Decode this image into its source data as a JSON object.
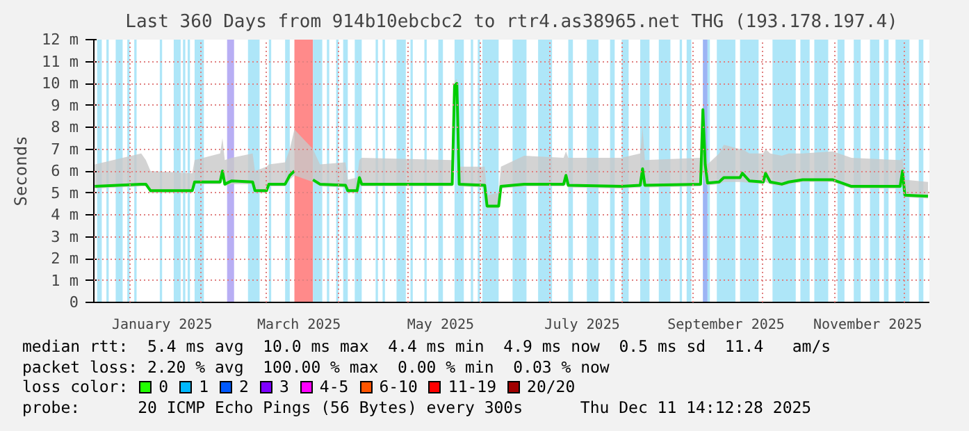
{
  "chart_data": {
    "type": "line",
    "title": "Last 360 Days from 914b10ebcbc2 to rtr4.as38965.net THG (193.178.197.4)",
    "ylabel": "Seconds",
    "xlim": [
      "2024-12-16T14:00",
      "2025-12-11T14:00"
    ],
    "xticks": [
      {
        "value": "2025-01-01",
        "label": null
      },
      {
        "value": "2025-02-01",
        "label": null
      },
      {
        "value": "2025-03-01",
        "label": null
      },
      {
        "value": "2025-04-01",
        "label": null
      },
      {
        "value": "2025-05-01",
        "label": null
      },
      {
        "value": "2025-06-01",
        "label": null
      },
      {
        "value": "2025-07-01",
        "label": null
      },
      {
        "value": "2025-08-01",
        "label": null
      },
      {
        "value": "2025-09-01",
        "label": null
      },
      {
        "value": "2025-10-01",
        "label": null
      },
      {
        "value": "2025-11-01",
        "label": null
      },
      {
        "value": "2025-12-01",
        "label": null
      },
      {
        "value": "2025-01-15",
        "label": "January 2025"
      },
      {
        "value": "2025-03-15",
        "label": "March 2025"
      },
      {
        "value": "2025-05-15",
        "label": "May 2025"
      },
      {
        "value": "2025-07-15",
        "label": "July 2025"
      },
      {
        "value": "2025-09-15",
        "label": "September 2025"
      },
      {
        "value": "2025-11-15",
        "label": "November 2025"
      }
    ],
    "ylim": [
      0,
      12
    ],
    "yticks": [
      0,
      {
        "value": 1,
        "label": "1 m"
      },
      {
        "value": 2,
        "label": "2 m"
      },
      {
        "value": 3,
        "label": "3 m"
      },
      {
        "value": 4,
        "label": "4 m"
      },
      {
        "value": 5,
        "label": "5 m"
      },
      {
        "value": 6,
        "label": "6 m"
      },
      {
        "value": 7,
        "label": "7 m"
      },
      {
        "value": 8,
        "label": "8 m"
      },
      {
        "value": 9,
        "label": "9 m"
      },
      {
        "value": 10,
        "label": "10 m"
      },
      {
        "value": 11,
        "label": "11 m"
      },
      {
        "value": 12,
        "label": "12 m"
      }
    ],
    "grid": true,
    "legend": "bottom",
    "legend_title": "loss color:",
    "x": [
      "2024-12-17",
      "2025-01-06",
      "2025-01-08",
      "2025-01-10",
      "2025-01-28",
      "2025-01-29",
      "2025-02-09",
      "2025-02-10",
      "2025-02-11",
      "2025-02-14",
      "2025-02-23",
      "2025-02-24",
      "2025-03-01",
      "2025-03-02",
      "2025-03-09",
      "2025-03-11",
      "2025-03-13",
      "2025-03-17",
      "2025-03-21",
      "2025-03-24",
      "2025-04-04",
      "2025-04-05",
      "2025-04-09",
      "2025-04-10",
      "2025-04-11",
      "2025-05-20",
      "2025-05-21",
      "2025-05-22",
      "2025-05-23",
      "2025-06-03",
      "2025-06-04",
      "2025-06-09",
      "2025-06-10",
      "2025-06-20",
      "2025-07-07",
      "2025-07-08",
      "2025-07-09",
      "2025-08-01",
      "2025-08-09",
      "2025-08-10",
      "2025-08-11",
      "2025-09-04",
      "2025-09-05",
      "2025-09-06",
      "2025-09-07",
      "2025-09-12",
      "2025-09-14",
      "2025-09-21",
      "2025-09-22",
      "2025-09-25",
      "2025-10-01",
      "2025-10-02",
      "2025-10-04",
      "2025-10-09",
      "2025-10-12",
      "2025-10-18",
      "2025-10-31",
      "2025-11-08",
      "2025-11-29",
      "2025-11-30",
      "2025-12-01",
      "2025-12-11"
    ],
    "series": [
      {
        "color": "#00cc00",
        "values": [
          5.3,
          5.4,
          5.4,
          5.1,
          5.1,
          5.5,
          5.5,
          6.0,
          5.4,
          5.55,
          5.5,
          5.1,
          5.1,
          5.4,
          5.4,
          5.8,
          6.0,
          null,
          5.6,
          5.4,
          5.35,
          5.1,
          5.1,
          5.7,
          5.4,
          5.4,
          9.9,
          10.0,
          5.4,
          5.35,
          4.4,
          4.4,
          5.3,
          5.4,
          5.4,
          5.8,
          5.35,
          5.3,
          5.35,
          6.1,
          5.35,
          5.4,
          8.8,
          6.3,
          5.45,
          5.5,
          5.7,
          5.7,
          5.9,
          5.55,
          5.5,
          5.9,
          5.5,
          5.4,
          5.5,
          5.6,
          5.6,
          5.3,
          5.3,
          6.0,
          4.9,
          4.85
        ],
        "lower": [
          5.2,
          5.3,
          5.3,
          5.0,
          5.0,
          5.4,
          5.4,
          5.9,
          5.3,
          5.4,
          5.4,
          5.0,
          5.0,
          5.3,
          5.3,
          5.6,
          5.8,
          null,
          5.5,
          5.3,
          5.25,
          5.0,
          5.0,
          5.3,
          5.3,
          5.3,
          9.7,
          9.8,
          5.3,
          5.25,
          4.3,
          4.3,
          5.2,
          5.3,
          5.3,
          5.4,
          5.25,
          5.2,
          5.25,
          5.4,
          5.25,
          5.3,
          6.0,
          5.4,
          5.35,
          5.4,
          5.5,
          5.5,
          5.5,
          5.45,
          5.4,
          5.5,
          5.4,
          5.3,
          5.4,
          5.5,
          5.5,
          5.2,
          5.2,
          5.4,
          4.8,
          4.75
        ],
        "upper": [
          6.3,
          6.8,
          6.5,
          6.0,
          5.9,
          6.5,
          6.8,
          7.5,
          6.5,
          6.6,
          6.8,
          6.0,
          6.2,
          6.3,
          6.4,
          7.0,
          7.9,
          null,
          7.0,
          6.3,
          6.4,
          5.6,
          5.7,
          6.5,
          6.6,
          6.5,
          10.1,
          10.2,
          6.2,
          6.2,
          4.9,
          5.0,
          6.2,
          6.7,
          6.6,
          6.9,
          6.6,
          6.6,
          6.8,
          8.0,
          6.5,
          6.6,
          9.1,
          7.3,
          6.3,
          6.8,
          7.2,
          7.0,
          7.0,
          6.8,
          6.8,
          7.0,
          6.8,
          6.7,
          6.8,
          6.8,
          6.9,
          6.6,
          6.5,
          6.6,
          5.6,
          5.5
        ]
      },
      {
        "name": "0",
        "color": "#22ff00",
        "values": [
          null,
          null,
          null,
          null,
          null,
          null,
          null,
          null,
          null,
          null,
          null,
          null,
          null,
          null,
          null,
          null,
          null,
          null,
          null,
          null,
          null,
          null,
          null,
          null,
          null,
          null,
          null,
          null,
          null,
          null,
          null,
          null,
          null,
          null,
          null,
          null,
          null,
          null,
          null,
          null,
          null,
          null,
          null,
          null,
          null,
          null,
          null,
          null,
          null,
          null,
          null,
          null,
          null,
          null,
          null,
          null,
          null,
          null,
          null,
          null,
          null,
          null
        ]
      },
      {
        "name": "1",
        "color": "#00b8ff",
        "values": [
          null,
          null,
          null,
          null,
          null,
          null,
          null,
          null,
          null,
          null,
          null,
          null,
          null,
          null,
          null,
          null,
          null,
          null,
          null,
          null,
          null,
          null,
          null,
          null,
          null,
          null,
          null,
          null,
          null,
          null,
          null,
          null,
          null,
          null,
          null,
          null,
          null,
          null,
          null,
          null,
          null,
          null,
          null,
          null,
          null,
          null,
          null,
          null,
          null,
          null,
          null,
          null,
          null,
          null,
          null,
          null,
          null,
          null,
          null,
          null,
          null,
          null
        ]
      },
      {
        "name": "2",
        "color": "#0059ff",
        "values": [
          null,
          null,
          null,
          null,
          null,
          null,
          null,
          null,
          null,
          null,
          null,
          null,
          null,
          null,
          null,
          null,
          null,
          null,
          null,
          null,
          null,
          null,
          null,
          null,
          null,
          null,
          null,
          null,
          null,
          null,
          null,
          null,
          null,
          null,
          null,
          null,
          null,
          null,
          null,
          null,
          null,
          null,
          null,
          null,
          null,
          null,
          null,
          null,
          null,
          null,
          null,
          null,
          null,
          null,
          null,
          null,
          null,
          null,
          null,
          null,
          null,
          null
        ]
      },
      {
        "name": "3",
        "color": "#7e00ff",
        "values": [
          null,
          null,
          null,
          null,
          null,
          null,
          null,
          null,
          null,
          null,
          null,
          null,
          null,
          null,
          null,
          null,
          null,
          null,
          null,
          null,
          null,
          null,
          null,
          null,
          null,
          null,
          null,
          null,
          null,
          null,
          null,
          null,
          null,
          null,
          null,
          null,
          null,
          null,
          null,
          null,
          null,
          null,
          null,
          null,
          null,
          null,
          null,
          null,
          null,
          null,
          null,
          null,
          null,
          null,
          null,
          null,
          null,
          null,
          null,
          null,
          null,
          null
        ]
      },
      {
        "name": "4-5",
        "color": "#ff00ff",
        "values": [
          null,
          null,
          null,
          null,
          null,
          null,
          null,
          null,
          null,
          null,
          null,
          null,
          null,
          null,
          null,
          null,
          null,
          null,
          null,
          null,
          null,
          null,
          null,
          null,
          null,
          null,
          null,
          null,
          null,
          null,
          null,
          null,
          null,
          null,
          null,
          null,
          null,
          null,
          null,
          null,
          null,
          null,
          null,
          null,
          null,
          null,
          null,
          null,
          null,
          null,
          null,
          null,
          null,
          null,
          null,
          null,
          null,
          null,
          null,
          null,
          null,
          null
        ]
      },
      {
        "name": "6-10",
        "color": "#ff5500",
        "values": [
          null,
          null,
          null,
          null,
          null,
          null,
          null,
          null,
          null,
          null,
          null,
          null,
          null,
          null,
          null,
          null,
          null,
          null,
          null,
          null,
          null,
          null,
          null,
          null,
          null,
          null,
          null,
          null,
          null,
          null,
          null,
          null,
          null,
          null,
          null,
          null,
          null,
          null,
          null,
          null,
          null,
          null,
          null,
          null,
          null,
          null,
          null,
          null,
          null,
          null,
          null,
          null,
          null,
          null,
          null,
          null,
          null,
          null,
          null,
          null,
          null,
          null
        ]
      },
      {
        "name": "11-19",
        "color": "#ff0000",
        "values": [
          null,
          null,
          null,
          null,
          null,
          null,
          null,
          null,
          null,
          null,
          null,
          null,
          null,
          null,
          null,
          null,
          null,
          null,
          null,
          null,
          null,
          null,
          null,
          null,
          null,
          null,
          null,
          null,
          null,
          null,
          null,
          null,
          null,
          null,
          null,
          null,
          null,
          null,
          null,
          null,
          null,
          null,
          null,
          null,
          null,
          null,
          null,
          null,
          null,
          null,
          null,
          null,
          null,
          null,
          null,
          null,
          null,
          null,
          null,
          null,
          null,
          null
        ]
      },
      {
        "name": "20/20",
        "color": "#a10000",
        "values": [
          null,
          null,
          null,
          null,
          null,
          null,
          null,
          null,
          null,
          null,
          null,
          null,
          null,
          null,
          null,
          null,
          null,
          null,
          null,
          null,
          null,
          null,
          null,
          null,
          null,
          null,
          null,
          null,
          null,
          null,
          null,
          null,
          null,
          null,
          null,
          null,
          null,
          null,
          null,
          null,
          null,
          null,
          null,
          null,
          null,
          null,
          null,
          null,
          null,
          null,
          null,
          null,
          null,
          null,
          null,
          null,
          null,
          null,
          null,
          null,
          null,
          null
        ]
      }
    ],
    "bands": [
      {
        "axis": "x",
        "from": "2024-12-18",
        "to": "2024-12-20",
        "color": "#aee6f8"
      },
      {
        "axis": "x",
        "from": "2024-12-22",
        "to": "2024-12-23",
        "color": "#aee6f8"
      },
      {
        "axis": "x",
        "from": "2024-12-26",
        "to": "2024-12-29",
        "color": "#aee6f8"
      },
      {
        "axis": "x",
        "from": "2024-12-31",
        "to": "2025-01-01",
        "color": "#aee6f8"
      },
      {
        "axis": "x",
        "from": "2025-01-03",
        "to": "2025-01-04",
        "color": "#aee6f8"
      },
      {
        "axis": "x",
        "from": "2025-01-14",
        "to": "2025-01-15",
        "color": "#aee6f8"
      },
      {
        "axis": "x",
        "from": "2025-01-20",
        "to": "2025-01-23",
        "color": "#aee6f8"
      },
      {
        "axis": "x",
        "from": "2025-01-24",
        "to": "2025-01-25",
        "color": "#aee6f8"
      },
      {
        "axis": "x",
        "from": "2025-01-26",
        "to": "2025-01-27",
        "color": "#aee6f8"
      },
      {
        "axis": "x",
        "from": "2025-01-29",
        "to": "2025-02-02",
        "color": "#aee6f8"
      },
      {
        "axis": "x",
        "from": "2025-02-12",
        "to": "2025-02-15",
        "color": "#b8aef4"
      },
      {
        "axis": "x",
        "from": "2025-02-21",
        "to": "2025-02-26",
        "color": "#aee6f8"
      },
      {
        "axis": "x",
        "from": "2025-03-02",
        "to": "2025-03-03",
        "color": "#aee6f8"
      },
      {
        "axis": "x",
        "from": "2025-03-09",
        "to": "2025-03-11",
        "color": "#aee6f8"
      },
      {
        "axis": "x",
        "from": "2025-03-13",
        "to": "2025-03-21",
        "color": "#ff8a8a"
      },
      {
        "axis": "x",
        "from": "2025-03-21",
        "to": "2025-03-25",
        "color": "#aee6f8"
      },
      {
        "axis": "x",
        "from": "2025-03-27",
        "to": "2025-03-28",
        "color": "#aee6f8"
      },
      {
        "axis": "x",
        "from": "2025-03-31",
        "to": "2025-04-01",
        "color": "#aee6f8"
      },
      {
        "axis": "x",
        "from": "2025-04-03",
        "to": "2025-04-05",
        "color": "#aee6f8"
      },
      {
        "axis": "x",
        "from": "2025-04-08",
        "to": "2025-04-11",
        "color": "#aee6f8"
      },
      {
        "axis": "x",
        "from": "2025-04-17",
        "to": "2025-04-18",
        "color": "#aee6f8"
      },
      {
        "axis": "x",
        "from": "2025-04-20",
        "to": "2025-04-21",
        "color": "#aee6f8"
      },
      {
        "axis": "x",
        "from": "2025-04-26",
        "to": "2025-04-30",
        "color": "#aee6f8"
      },
      {
        "axis": "x",
        "from": "2025-05-02",
        "to": "2025-05-03",
        "color": "#aee6f8"
      },
      {
        "axis": "x",
        "from": "2025-05-08",
        "to": "2025-05-09",
        "color": "#aee6f8"
      },
      {
        "axis": "x",
        "from": "2025-05-14",
        "to": "2025-05-16",
        "color": "#aee6f8"
      },
      {
        "axis": "x",
        "from": "2025-05-21",
        "to": "2025-05-25",
        "color": "#aee6f8"
      },
      {
        "axis": "x",
        "from": "2025-05-28",
        "to": "2025-05-29",
        "color": "#aee6f8"
      },
      {
        "axis": "x",
        "from": "2025-05-31",
        "to": "2025-06-01",
        "color": "#aee6f8"
      },
      {
        "axis": "x",
        "from": "2025-06-02",
        "to": "2025-06-09",
        "color": "#aee6f8"
      },
      {
        "axis": "x",
        "from": "2025-06-15",
        "to": "2025-06-21",
        "color": "#aee6f8"
      },
      {
        "axis": "x",
        "from": "2025-06-26",
        "to": "2025-07-02",
        "color": "#aee6f8"
      },
      {
        "axis": "x",
        "from": "2025-07-09",
        "to": "2025-07-11",
        "color": "#aee6f8"
      },
      {
        "axis": "x",
        "from": "2025-07-17",
        "to": "2025-07-22",
        "color": "#aee6f8"
      },
      {
        "axis": "x",
        "from": "2025-07-27",
        "to": "2025-07-29",
        "color": "#aee6f8"
      },
      {
        "axis": "x",
        "from": "2025-08-01",
        "to": "2025-08-04",
        "color": "#aee6f8"
      },
      {
        "axis": "x",
        "from": "2025-08-09",
        "to": "2025-08-13",
        "color": "#aee6f8"
      },
      {
        "axis": "x",
        "from": "2025-08-17",
        "to": "2025-08-22",
        "color": "#aee6f8"
      },
      {
        "axis": "x",
        "from": "2025-08-26",
        "to": "2025-08-27",
        "color": "#aee6f8"
      },
      {
        "axis": "x",
        "from": "2025-08-29",
        "to": "2025-08-31",
        "color": "#aee6f8"
      },
      {
        "axis": "x",
        "from": "2025-09-05",
        "to": "2025-09-07",
        "color": "#9cb4f4"
      },
      {
        "axis": "x",
        "from": "2025-09-07",
        "to": "2025-09-08",
        "color": "#aee6f8"
      },
      {
        "axis": "x",
        "from": "2025-09-11",
        "to": "2025-09-19",
        "color": "#aee6f8"
      },
      {
        "axis": "x",
        "from": "2025-09-21",
        "to": "2025-09-29",
        "color": "#aee6f8"
      },
      {
        "axis": "x",
        "from": "2025-10-05",
        "to": "2025-10-15",
        "color": "#aee6f8"
      },
      {
        "axis": "x",
        "from": "2025-10-17",
        "to": "2025-10-21",
        "color": "#aee6f8"
      },
      {
        "axis": "x",
        "from": "2025-10-23",
        "to": "2025-10-29",
        "color": "#aee6f8"
      },
      {
        "axis": "x",
        "from": "2025-11-02",
        "to": "2025-11-05",
        "color": "#aee6f8"
      },
      {
        "axis": "x",
        "from": "2025-11-09",
        "to": "2025-11-12",
        "color": "#aee6f8"
      },
      {
        "axis": "x",
        "from": "2025-11-16",
        "to": "2025-11-20",
        "color": "#aee6f8"
      },
      {
        "axis": "x",
        "from": "2025-11-22",
        "to": "2025-11-24",
        "color": "#aee6f8"
      },
      {
        "axis": "x",
        "from": "2025-11-27",
        "to": "2025-12-03",
        "color": "#aee6f8"
      },
      {
        "axis": "x",
        "from": "2025-12-07",
        "to": "2025-12-09",
        "color": "#aee6f8"
      }
    ],
    "annotations": [
      "median rtt:  5.4 ms avg  10.0 ms max  4.4 ms min  4.9 ms now  0.5 ms sd  11.4   am/s",
      "packet loss: 2.20 % avg  100.00 % max  0.00 % min  0.03 % now",
      "probe:      20 ICMP Echo Pings (56 Bytes) every 300s",
      "Thu Dec 11 14:12:28 2025"
    ]
  }
}
